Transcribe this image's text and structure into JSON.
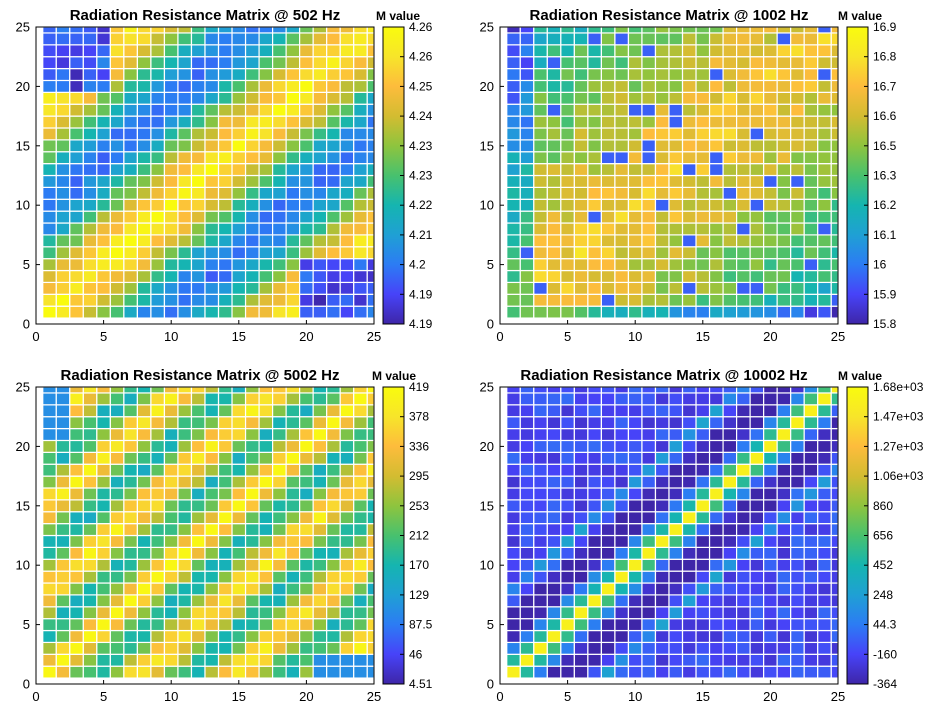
{
  "chart_data": [
    {
      "type": "heatmap",
      "title": "Radiation Resistance Matrix @ 502 Hz",
      "colorbar_label": "M value",
      "colorbar_ticks": [
        "4.26",
        "4.26",
        "4.25",
        "4.24",
        "4.23",
        "4.23",
        "4.22",
        "4.21",
        "4.2",
        "4.19",
        "4.19"
      ],
      "clim": [
        4.19,
        4.26
      ],
      "x_ticks": [
        0,
        5,
        10,
        15,
        20,
        25
      ],
      "y_ticks": [
        0,
        5,
        10,
        15,
        20,
        25
      ],
      "xlim": [
        0,
        25
      ],
      "ylim": [
        0,
        25
      ],
      "grid_size": 25,
      "pattern": "low_mid_freq"
    },
    {
      "type": "heatmap",
      "title": "Radiation Resistance Matrix @ 1002 Hz",
      "colorbar_label": "M value",
      "colorbar_ticks": [
        "16.9",
        "16.8",
        "16.7",
        "16.6",
        "16.5",
        "16.3",
        "16.2",
        "16.1",
        "16",
        "15.9",
        "15.8"
      ],
      "clim": [
        15.8,
        16.9
      ],
      "x_ticks": [
        0,
        5,
        10,
        15,
        20,
        25
      ],
      "y_ticks": [
        0,
        5,
        10,
        15,
        20,
        25
      ],
      "xlim": [
        0,
        25
      ],
      "ylim": [
        0,
        25
      ],
      "grid_size": 25,
      "pattern": "flat_high"
    },
    {
      "type": "heatmap",
      "title": "Radiation Resistance Matrix @ 5002 Hz",
      "colorbar_label": "M value",
      "colorbar_ticks": [
        "419",
        "378",
        "336",
        "295",
        "253",
        "212",
        "170",
        "129",
        "87.5",
        "46",
        "4.51"
      ],
      "clim": [
        4.51,
        419
      ],
      "x_ticks": [
        0,
        5,
        10,
        15,
        20,
        25
      ],
      "y_ticks": [
        0,
        5,
        10,
        15,
        20,
        25
      ],
      "xlim": [
        0,
        25
      ],
      "ylim": [
        0,
        25
      ],
      "grid_size": 25,
      "pattern": "banded"
    },
    {
      "type": "heatmap",
      "title": "Radiation Resistance Matrix @ 10002 Hz",
      "colorbar_label": "M value",
      "colorbar_ticks": [
        "1.68e+03",
        "1.47e+03",
        "1.27e+03",
        "1.06e+03",
        "860",
        "656",
        "452",
        "248",
        "44.3",
        "-160",
        "-364"
      ],
      "clim": [
        -364,
        1680
      ],
      "x_ticks": [
        0,
        5,
        10,
        15,
        20,
        25
      ],
      "y_ticks": [
        0,
        5,
        10,
        15,
        20,
        25
      ],
      "xlim": [
        0,
        25
      ],
      "ylim": [
        0,
        25
      ],
      "grid_size": 25,
      "pattern": "diagonal"
    }
  ],
  "colors": {
    "parula": [
      "#3e26a8",
      "#4743f8",
      "#2c7cf4",
      "#1fa0d4",
      "#15b5b0",
      "#48c16e",
      "#8ec43e",
      "#d3bc31",
      "#fdbc3c",
      "#f7e52a",
      "#f9fb0e"
    ],
    "cell_border": "#ffffff",
    "axis": "#000000"
  }
}
